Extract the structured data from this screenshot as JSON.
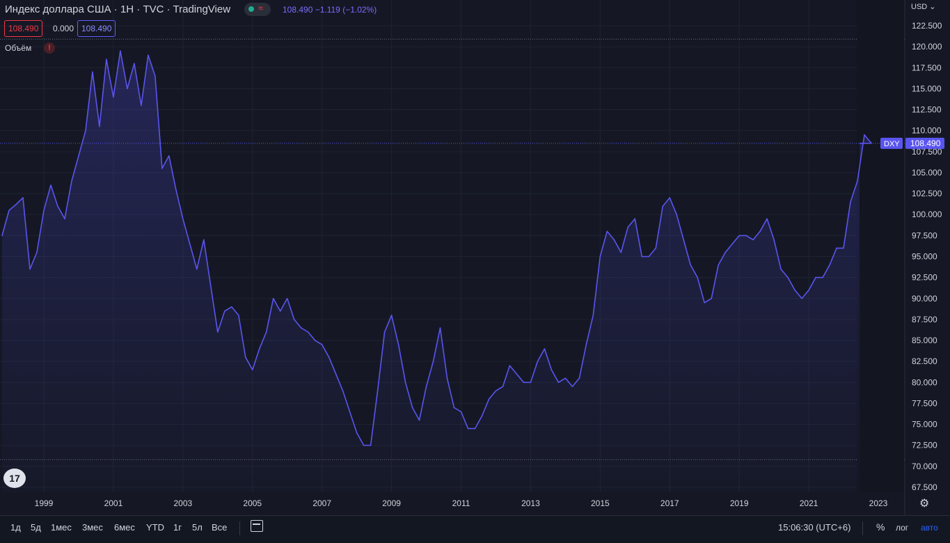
{
  "header": {
    "title": "Индекс доллара США · 1Н · TVC · TradingView",
    "quote": "108.490 −1.119 (−1.02%)",
    "price_box_1": "108.490",
    "price_box_2": "0.000",
    "price_box_3": "108.490",
    "volume_label": "Объём",
    "warning": "!",
    "currency": "USD",
    "currency_caret": "⌄"
  },
  "price_label": {
    "symbol": "DXY",
    "value": "108.490"
  },
  "bottom": {
    "ranges": [
      "1д",
      "5д",
      "1мес",
      "3мес",
      "6мес",
      "YTD",
      "1г",
      "5л",
      "Все"
    ],
    "time": "15:06:30 (UTC+6)",
    "percent": "%",
    "log": "лог",
    "auto": "авто"
  },
  "colors": {
    "line": "#5a55f0",
    "background": "#151824",
    "accent": "#2962ff",
    "down": "#f23645"
  },
  "icons": {
    "logo": "tradingview-logo-icon",
    "settings": "gear-icon",
    "calendar": "calendar-icon"
  },
  "chart_data": {
    "type": "area",
    "symbol": "DXY",
    "last": 108.49,
    "ylim": [
      67.5,
      123.75
    ],
    "yticks": [
      "122.500",
      "120.000",
      "117.500",
      "115.000",
      "112.500",
      "110.000",
      "107.500",
      "105.000",
      "102.500",
      "100.000",
      "97.500",
      "95.000",
      "92.500",
      "90.000",
      "87.500",
      "85.000",
      "82.500",
      "80.000",
      "77.500",
      "75.000",
      "72.500",
      "70.000",
      "67.500"
    ],
    "xlim": [
      1997.76,
      2023.95
    ],
    "xticks": [
      "1999",
      "2001",
      "2003",
      "2005",
      "2007",
      "2009",
      "2011",
      "2013",
      "2015",
      "2017",
      "2019",
      "2021",
      "2023"
    ],
    "dotted_levels": [
      120.9,
      70.8
    ],
    "x": [
      1997.8,
      1998.0,
      1998.2,
      1998.4,
      1998.6,
      1998.8,
      1999.0,
      1999.2,
      1999.4,
      1999.6,
      1999.8,
      2000.0,
      2000.2,
      2000.4,
      2000.6,
      2000.8,
      2001.0,
      2001.2,
      2001.4,
      2001.6,
      2001.8,
      2002.0,
      2002.2,
      2002.4,
      2002.6,
      2002.8,
      2003.0,
      2003.2,
      2003.4,
      2003.6,
      2003.8,
      2004.0,
      2004.2,
      2004.4,
      2004.6,
      2004.8,
      2005.0,
      2005.2,
      2005.4,
      2005.6,
      2005.8,
      2006.0,
      2006.2,
      2006.4,
      2006.6,
      2006.8,
      2007.0,
      2007.2,
      2007.4,
      2007.6,
      2007.8,
      2008.0,
      2008.2,
      2008.4,
      2008.6,
      2008.8,
      2009.0,
      2009.2,
      2009.4,
      2009.6,
      2009.8,
      2010.0,
      2010.2,
      2010.4,
      2010.6,
      2010.8,
      2011.0,
      2011.2,
      2011.4,
      2011.6,
      2011.8,
      2012.0,
      2012.2,
      2012.4,
      2012.6,
      2012.8,
      2013.0,
      2013.2,
      2013.4,
      2013.6,
      2013.8,
      2014.0,
      2014.2,
      2014.4,
      2014.6,
      2014.8,
      2015.0,
      2015.2,
      2015.4,
      2015.6,
      2015.8,
      2016.0,
      2016.2,
      2016.4,
      2016.6,
      2016.8,
      2017.0,
      2017.2,
      2017.4,
      2017.6,
      2017.8,
      2018.0,
      2018.2,
      2018.4,
      2018.6,
      2018.8,
      2019.0,
      2019.2,
      2019.4,
      2019.6,
      2019.8,
      2020.0,
      2020.2,
      2020.4,
      2020.6,
      2020.8,
      2021.0,
      2021.2,
      2021.4,
      2021.6,
      2021.8,
      2022.0,
      2022.2,
      2022.4,
      2022.6,
      2022.8
    ],
    "values": [
      97.5,
      100.5,
      101.2,
      102.0,
      93.5,
      95.5,
      100.5,
      103.5,
      101.0,
      99.5,
      104.0,
      107.0,
      110.0,
      117.0,
      110.5,
      118.5,
      114.0,
      119.5,
      115.0,
      118.0,
      113.0,
      119.0,
      116.5,
      105.5,
      107.0,
      103.0,
      99.5,
      96.5,
      93.5,
      97.0,
      91.5,
      86.0,
      88.5,
      89.0,
      88.0,
      83.0,
      81.5,
      84.0,
      86.0,
      90.0,
      88.5,
      90.0,
      87.5,
      86.5,
      86.0,
      85.0,
      84.5,
      83.0,
      81.0,
      79.0,
      76.5,
      74.0,
      72.5,
      72.5,
      79.0,
      86.0,
      88.0,
      84.5,
      80.0,
      77.0,
      75.5,
      79.5,
      82.5,
      86.5,
      80.5,
      77.0,
      76.5,
      74.5,
      74.5,
      76.0,
      78.0,
      79.0,
      79.5,
      82.0,
      81.0,
      80.0,
      80.0,
      82.5,
      84.0,
      81.5,
      80.0,
      80.5,
      79.5,
      80.5,
      84.5,
      88.0,
      95.0,
      98.0,
      97.0,
      95.5,
      98.5,
      99.5,
      95.0,
      95.0,
      96.0,
      101.0,
      102.0,
      100.0,
      97.0,
      94.0,
      92.5,
      89.5,
      90.0,
      94.0,
      95.5,
      96.5,
      97.5,
      97.5,
      97.0,
      98.0,
      99.5,
      97.0,
      93.5,
      92.5,
      91.0,
      90.0,
      91.0,
      92.5,
      92.5,
      94.0,
      96.0,
      96.0,
      101.5,
      104.0,
      109.5,
      108.5
    ]
  }
}
